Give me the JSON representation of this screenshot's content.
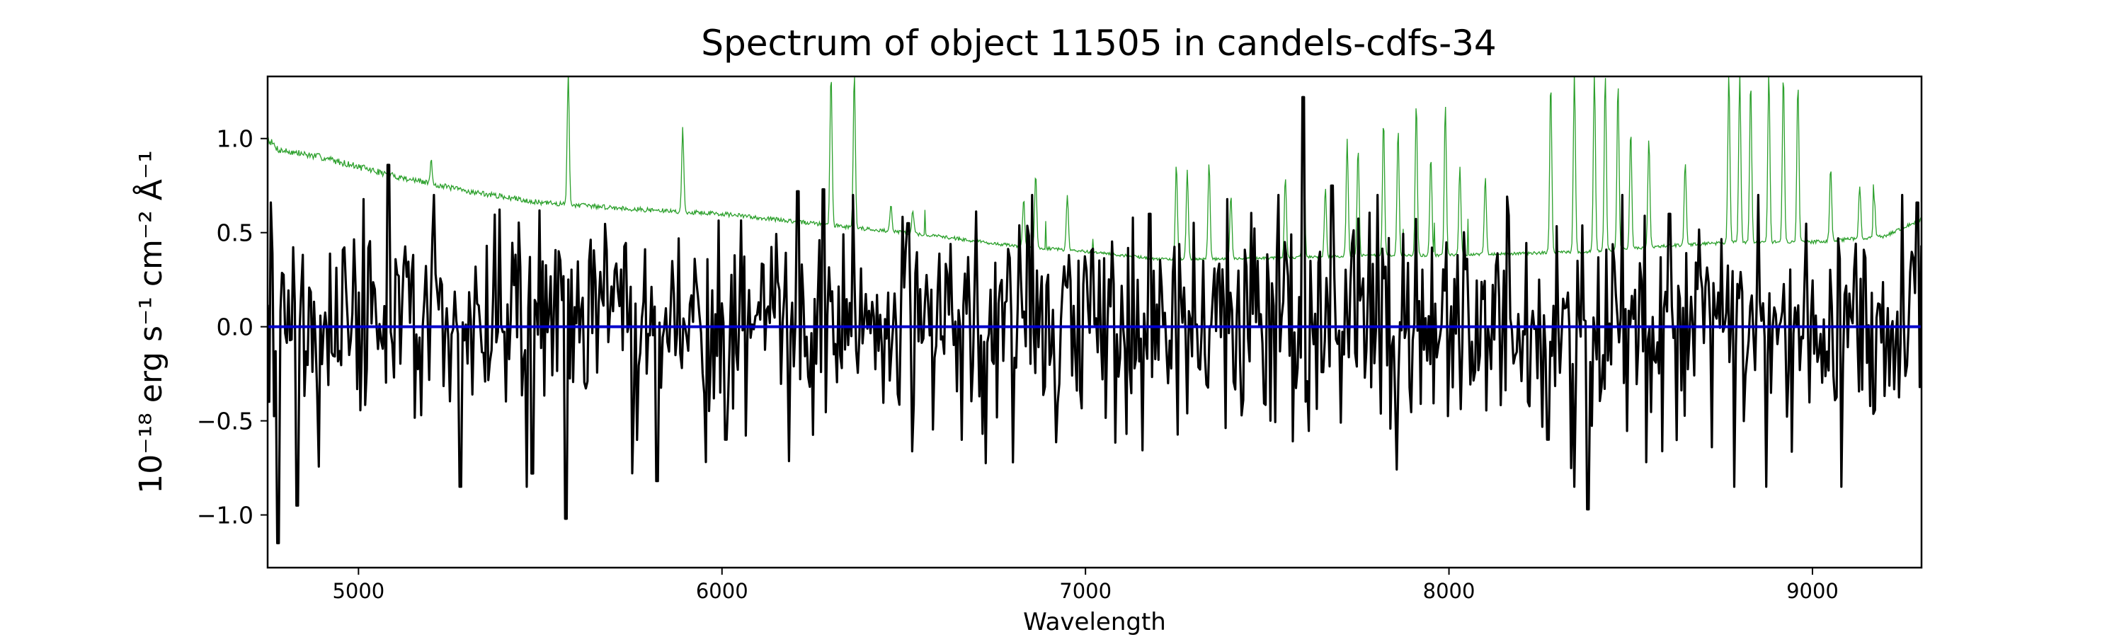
{
  "chart_data": {
    "type": "line",
    "title": "Spectrum of object 11505 in candels-cdfs-34",
    "xlabel": "Wavelength",
    "ylabel": "10⁻¹⁸ erg s⁻¹ cm⁻² Å⁻¹",
    "xlim": [
      4750,
      9300
    ],
    "ylim": [
      -1.28,
      1.33
    ],
    "xticks": [
      5000,
      6000,
      7000,
      8000,
      9000
    ],
    "xtick_labels": [
      "5000",
      "6000",
      "7000",
      "8000",
      "9000"
    ],
    "yticks": [
      -1.0,
      -0.5,
      0.0,
      0.5,
      1.0
    ],
    "ytick_labels": [
      "−1.0",
      "−0.5",
      "0.0",
      "0.5",
      "1.0"
    ],
    "grid": false,
    "series": [
      {
        "role": "noise",
        "color": "#2ca02c",
        "baseline": [
          [
            4750,
            1.0
          ],
          [
            4780,
            0.94
          ],
          [
            4900,
            0.9
          ],
          [
            5100,
            0.8
          ],
          [
            5300,
            0.72
          ],
          [
            5500,
            0.66
          ],
          [
            5800,
            0.62
          ],
          [
            6000,
            0.6
          ],
          [
            6200,
            0.56
          ],
          [
            6400,
            0.52
          ],
          [
            6600,
            0.48
          ],
          [
            6800,
            0.43
          ],
          [
            7000,
            0.4
          ],
          [
            7200,
            0.36
          ],
          [
            7400,
            0.36
          ],
          [
            7600,
            0.37
          ],
          [
            7800,
            0.38
          ],
          [
            8000,
            0.38
          ],
          [
            8200,
            0.39
          ],
          [
            8400,
            0.4
          ],
          [
            8600,
            0.43
          ],
          [
            8800,
            0.45
          ],
          [
            9000,
            0.45
          ],
          [
            9200,
            0.48
          ],
          [
            9300,
            0.57
          ]
        ],
        "emission_lines": [
          [
            5200,
            0.88
          ],
          [
            5577,
            1.35
          ],
          [
            5892,
            1.05
          ],
          [
            6300,
            1.35
          ],
          [
            6364,
            1.35
          ],
          [
            6465,
            0.65
          ],
          [
            6525,
            0.62
          ],
          [
            6830,
            0.68
          ],
          [
            6863,
            0.82
          ],
          [
            6950,
            0.7
          ],
          [
            7250,
            0.87
          ],
          [
            7280,
            0.84
          ],
          [
            7340,
            0.88
          ],
          [
            7400,
            0.7
          ],
          [
            7550,
            0.8
          ],
          [
            7600,
            1.2
          ],
          [
            7660,
            0.74
          ],
          [
            7720,
            1.0
          ],
          [
            7750,
            0.95
          ],
          [
            7820,
            1.1
          ],
          [
            7860,
            1.05
          ],
          [
            7910,
            1.2
          ],
          [
            7950,
            0.9
          ],
          [
            7990,
            1.18
          ],
          [
            8030,
            0.85
          ],
          [
            8100,
            0.8
          ],
          [
            8280,
            1.3
          ],
          [
            8345,
            1.35
          ],
          [
            8400,
            1.35
          ],
          [
            8430,
            1.35
          ],
          [
            8465,
            1.3
          ],
          [
            8500,
            1.05
          ],
          [
            8550,
            1.0
          ],
          [
            8650,
            0.88
          ],
          [
            8770,
            1.35
          ],
          [
            8800,
            1.35
          ],
          [
            8830,
            1.3
          ],
          [
            8880,
            1.35
          ],
          [
            8920,
            1.35
          ],
          [
            8960,
            1.3
          ],
          [
            9050,
            0.85
          ],
          [
            9130,
            0.75
          ],
          [
            9170,
            0.68
          ]
        ],
        "noise_amp": 0.2,
        "seed": 7
      },
      {
        "role": "flux",
        "color": "#000000",
        "sigma": 0.3,
        "seed": 11505,
        "extremes": [
          [
            4780,
            -1.15
          ],
          [
            4830,
            -0.95
          ],
          [
            5080,
            0.86
          ],
          [
            5280,
            -0.85
          ],
          [
            5480,
            -0.78
          ],
          [
            5570,
            -1.02
          ],
          [
            5820,
            -0.82
          ],
          [
            6010,
            -0.6
          ],
          [
            6210,
            0.72
          ],
          [
            6280,
            0.73
          ],
          [
            6510,
            0.55
          ],
          [
            7175,
            0.6
          ],
          [
            7600,
            1.22
          ],
          [
            7680,
            0.75
          ],
          [
            8270,
            -0.6
          ],
          [
            8380,
            -0.97
          ],
          [
            8605,
            0.6
          ],
          [
            9290,
            0.66
          ]
        ]
      },
      {
        "role": "zero",
        "color": "#0000cc",
        "y": 0.0
      }
    ]
  }
}
